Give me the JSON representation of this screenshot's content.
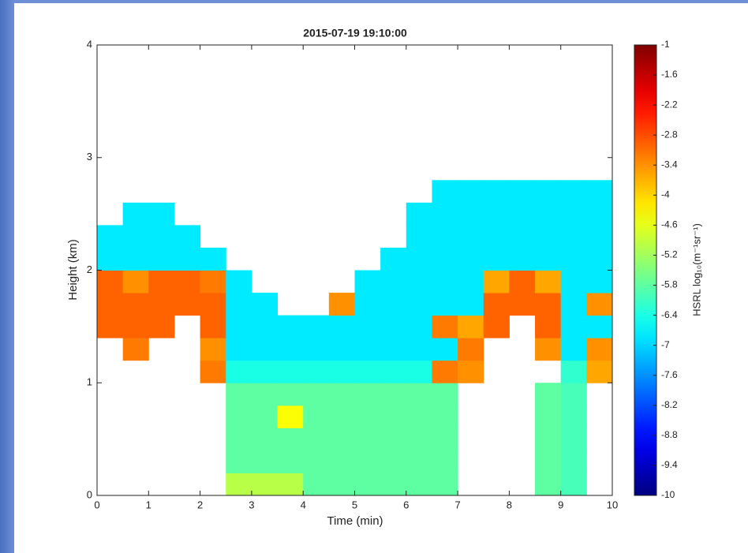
{
  "chart_data": {
    "type": "heatmap",
    "title": "2015-07-19 19:10:00",
    "x_label": "Time (min)",
    "y_label": "Height (km)",
    "colorbar_label": "HSRL log₁₀(m⁻¹sr⁻¹)",
    "colormap": "jet",
    "xbins": [
      0,
      0.5,
      1,
      1.5,
      2,
      2.5,
      3,
      3.5,
      4,
      4.5,
      5,
      5.5,
      6,
      6.5,
      7,
      7.5,
      8,
      8.5,
      9,
      9.5,
      10
    ],
    "ybins": [
      0,
      0.2,
      0.4,
      0.6,
      0.8,
      1,
      1.2,
      1.4,
      1.6,
      1.8,
      2,
      2.2,
      2.4,
      2.6,
      2.8
    ],
    "z": [
      [
        null,
        null,
        null,
        null,
        null,
        -5.0,
        -5.0,
        -5.0,
        -5.8,
        -5.8,
        -5.8,
        -5.8,
        -5.8,
        -5.8,
        null,
        null,
        null,
        -5.8,
        -6.0,
        null
      ],
      [
        null,
        null,
        null,
        null,
        null,
        -5.8,
        -5.8,
        -5.8,
        -5.8,
        -5.8,
        -5.8,
        -5.8,
        -5.8,
        -5.8,
        null,
        null,
        null,
        -5.8,
        -6.0,
        null
      ],
      [
        null,
        null,
        null,
        null,
        null,
        -5.8,
        -5.8,
        -5.8,
        -5.8,
        -5.8,
        -5.8,
        -5.8,
        -5.8,
        -5.8,
        null,
        null,
        null,
        -5.8,
        -6.0,
        null
      ],
      [
        null,
        null,
        null,
        null,
        null,
        -5.8,
        -5.8,
        -4.4,
        -5.8,
        -5.8,
        -5.8,
        -5.8,
        -5.8,
        -5.8,
        null,
        null,
        null,
        -5.8,
        -6.0,
        null
      ],
      [
        null,
        null,
        null,
        null,
        null,
        -5.8,
        -5.8,
        -5.8,
        -5.8,
        -5.8,
        -5.8,
        -5.8,
        -5.8,
        -5.8,
        null,
        null,
        null,
        -5.8,
        -6.0,
        null
      ],
      [
        null,
        null,
        null,
        null,
        -3.2,
        -6.4,
        -6.4,
        -6.4,
        -6.4,
        -6.4,
        -6.4,
        -6.4,
        -6.4,
        -3.2,
        -3.4,
        null,
        null,
        null,
        -6.2,
        -3.6
      ],
      [
        null,
        -3.2,
        null,
        null,
        -3.4,
        -6.8,
        -6.8,
        -6.8,
        -6.8,
        -6.8,
        -6.8,
        -6.8,
        -6.8,
        -6.8,
        -3.2,
        null,
        null,
        -3.4,
        -6.8,
        -3.4
      ],
      [
        -3.0,
        -3.0,
        -3.0,
        null,
        -3.0,
        -6.8,
        -6.8,
        -6.8,
        -6.8,
        -6.8,
        -6.8,
        -6.8,
        -6.8,
        -3.2,
        -3.6,
        -3.0,
        null,
        -3.0,
        -6.8,
        -6.8
      ],
      [
        -3.0,
        -3.0,
        -3.0,
        -3.0,
        -3.0,
        -6.8,
        -6.8,
        null,
        null,
        -3.4,
        -6.8,
        -6.8,
        -6.8,
        -6.8,
        -6.8,
        -3.0,
        -3.0,
        -3.0,
        -6.8,
        -3.4
      ],
      [
        -3.0,
        -3.4,
        -3.0,
        -3.0,
        -3.2,
        -6.8,
        null,
        null,
        null,
        null,
        -6.8,
        -6.8,
        -6.8,
        -6.8,
        -6.8,
        -3.6,
        -3.0,
        -3.6,
        -6.8,
        -6.8
      ],
      [
        -6.8,
        -6.8,
        -6.8,
        -6.8,
        -6.8,
        null,
        null,
        null,
        null,
        null,
        null,
        -6.8,
        -6.8,
        -6.8,
        -6.8,
        -6.8,
        -6.8,
        -6.8,
        -6.8,
        -6.8
      ],
      [
        -6.8,
        -6.8,
        -6.8,
        -6.8,
        null,
        null,
        null,
        null,
        null,
        null,
        null,
        null,
        -6.8,
        -6.8,
        -6.8,
        -6.8,
        -6.8,
        -6.8,
        -6.8,
        -6.8
      ],
      [
        null,
        -6.8,
        -6.8,
        null,
        null,
        null,
        null,
        null,
        null,
        null,
        null,
        null,
        -6.8,
        -6.8,
        -6.8,
        -6.8,
        -6.8,
        -6.8,
        -6.8,
        -6.8
      ],
      [
        null,
        null,
        null,
        null,
        null,
        null,
        null,
        null,
        null,
        null,
        null,
        null,
        null,
        -6.8,
        -6.8,
        -6.8,
        -6.8,
        -6.8,
        -6.8,
        -6.8
      ]
    ],
    "xlim": [
      0,
      10
    ],
    "xticks": [
      0,
      1,
      2,
      3,
      4,
      5,
      6,
      7,
      8,
      9,
      10
    ],
    "ylim": [
      0,
      4
    ],
    "yticks": [
      0,
      1,
      2,
      3,
      4
    ],
    "clim": [
      -10,
      -1
    ],
    "cticks": [
      -1,
      -1.6,
      -2.2,
      -2.8,
      -3.4,
      -4,
      -4.6,
      -5.2,
      -5.8,
      -6.4,
      -7,
      -7.6,
      -8.2,
      -8.8,
      -9.4,
      -10
    ]
  }
}
